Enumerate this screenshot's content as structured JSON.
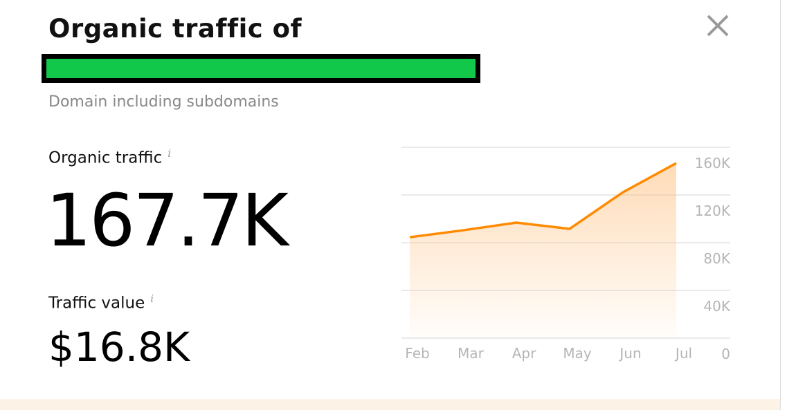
{
  "header": {
    "title": "Organic traffic of",
    "subtitle": "Domain including subdomains"
  },
  "metrics": [
    {
      "label": "Organic traffic",
      "info": "i",
      "value": "167.7K"
    },
    {
      "label": "Traffic value",
      "info": "i",
      "value": "$16.8K"
    }
  ],
  "chart_data": {
    "type": "area",
    "categories": [
      "Feb",
      "Mar",
      "Apr",
      "May",
      "Jun",
      "Jul"
    ],
    "values": [
      84600,
      90400,
      96800,
      91600,
      122300,
      146700
    ],
    "color": "#ff8a00",
    "ylim": [
      0,
      160000
    ],
    "yticks": [
      0,
      {
        "value": 40000,
        "label": "40K"
      },
      {
        "value": 80000,
        "label": "80K"
      },
      {
        "value": 120000,
        "label": "120K"
      },
      {
        "value": 160000,
        "label": "160K"
      }
    ],
    "grid": true
  }
}
